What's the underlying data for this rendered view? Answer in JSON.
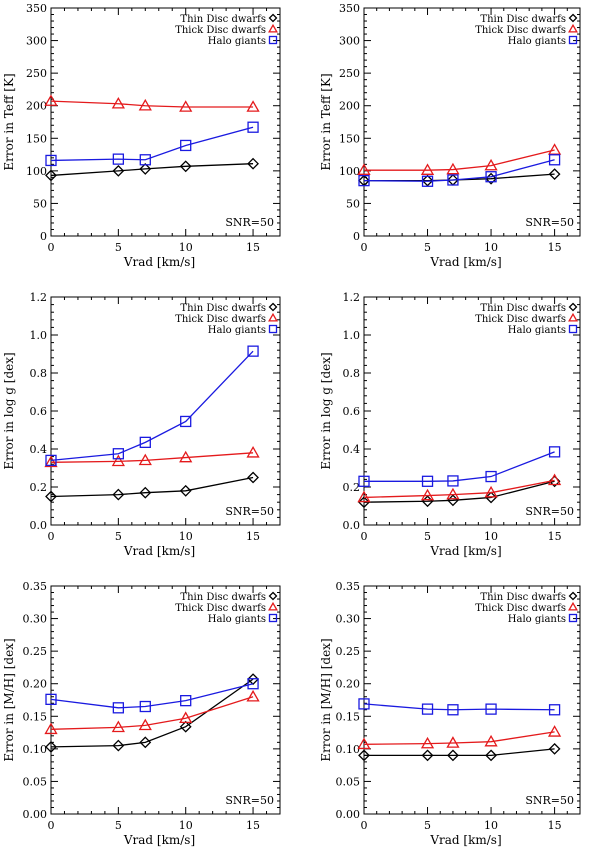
{
  "legend": {
    "thin_label": "Thin Disc dwarfs",
    "thick_label": "Thick Disc dwarfs",
    "halo_label": "Halo giants"
  },
  "colors": {
    "thin": "#000000",
    "thick": "#e41a1c",
    "halo": "#1a1ae0"
  },
  "chart_data": [
    {
      "type": "line",
      "title": "",
      "xlabel": "Vrad [km/s]",
      "ylabel": "Error in Teff [K]",
      "xlim": [
        0,
        17
      ],
      "ylim": [
        0,
        350
      ],
      "xticks": [
        0,
        5,
        10,
        15
      ],
      "yticks": [
        0,
        50,
        100,
        150,
        200,
        250,
        300,
        350
      ],
      "tick_decimals": 0,
      "annotation": "SNR=50",
      "x": [
        0,
        5,
        7,
        10,
        15
      ],
      "series": [
        {
          "name": "Thin Disc dwarfs",
          "key": "thin",
          "marker": "diamond",
          "values": [
            93,
            100,
            103,
            107,
            111
          ]
        },
        {
          "name": "Thick Disc dwarfs",
          "key": "thick",
          "marker": "triangle",
          "values": [
            207,
            203,
            200,
            198,
            198
          ]
        },
        {
          "name": "Halo giants",
          "key": "halo",
          "marker": "square",
          "values": [
            116,
            118,
            117,
            139,
            167
          ]
        }
      ]
    },
    {
      "type": "line",
      "title": "",
      "xlabel": "Vrad [km/s]",
      "ylabel": "Error in Teff [K]",
      "xlim": [
        0,
        17
      ],
      "ylim": [
        0,
        350
      ],
      "xticks": [
        0,
        5,
        10,
        15
      ],
      "yticks": [
        0,
        50,
        100,
        150,
        200,
        250,
        300,
        350
      ],
      "tick_decimals": 0,
      "annotation": "SNR=50",
      "x": [
        0,
        5,
        7,
        10,
        15
      ],
      "series": [
        {
          "name": "Thin Disc dwarfs",
          "key": "thin",
          "marker": "diamond",
          "values": [
            85,
            85,
            86,
            88,
            95
          ]
        },
        {
          "name": "Thick Disc dwarfs",
          "key": "thick",
          "marker": "triangle",
          "values": [
            101,
            101,
            102,
            108,
            132
          ]
        },
        {
          "name": "Halo giants",
          "key": "halo",
          "marker": "square",
          "values": [
            85,
            84,
            86,
            91,
            117
          ]
        }
      ]
    },
    {
      "type": "line",
      "title": "",
      "xlabel": "Vrad [km/s]",
      "ylabel": "Error in log g [dex]",
      "xlim": [
        0,
        17
      ],
      "ylim": [
        0,
        1.2
      ],
      "xticks": [
        0,
        5,
        10,
        15
      ],
      "yticks": [
        0.0,
        0.2,
        0.4,
        0.6,
        0.8,
        1.0,
        1.2
      ],
      "tick_decimals": 1,
      "annotation": "SNR=50",
      "x": [
        0,
        5,
        7,
        10,
        15
      ],
      "series": [
        {
          "name": "Thin Disc dwarfs",
          "key": "thin",
          "marker": "diamond",
          "values": [
            0.15,
            0.16,
            0.17,
            0.18,
            0.25
          ]
        },
        {
          "name": "Thick Disc dwarfs",
          "key": "thick",
          "marker": "triangle",
          "values": [
            0.33,
            0.335,
            0.34,
            0.355,
            0.38
          ]
        },
        {
          "name": "Halo giants",
          "key": "halo",
          "marker": "square",
          "values": [
            0.34,
            0.375,
            0.435,
            0.545,
            0.915
          ]
        }
      ]
    },
    {
      "type": "line",
      "title": "",
      "xlabel": "Vrad [km/s]",
      "ylabel": "Error in log g [dex]",
      "xlim": [
        0,
        17
      ],
      "ylim": [
        0,
        1.2
      ],
      "xticks": [
        0,
        5,
        10,
        15
      ],
      "yticks": [
        0.0,
        0.2,
        0.4,
        0.6,
        0.8,
        1.0,
        1.2
      ],
      "tick_decimals": 1,
      "annotation": "SNR=50",
      "x": [
        0,
        5,
        7,
        10,
        15
      ],
      "series": [
        {
          "name": "Thin Disc dwarfs",
          "key": "thin",
          "marker": "diamond",
          "values": [
            0.12,
            0.125,
            0.13,
            0.145,
            0.23
          ]
        },
        {
          "name": "Thick Disc dwarfs",
          "key": "thick",
          "marker": "triangle",
          "values": [
            0.145,
            0.155,
            0.16,
            0.17,
            0.235
          ]
        },
        {
          "name": "Halo giants",
          "key": "halo",
          "marker": "square",
          "values": [
            0.23,
            0.23,
            0.232,
            0.255,
            0.385
          ]
        }
      ]
    },
    {
      "type": "line",
      "title": "",
      "xlabel": "Vrad [km/s]",
      "ylabel": "Error in [M/H] [dex]",
      "xlim": [
        0,
        17
      ],
      "ylim": [
        0,
        0.35
      ],
      "xticks": [
        0,
        5,
        10,
        15
      ],
      "yticks": [
        0.0,
        0.05,
        0.1,
        0.15,
        0.2,
        0.25,
        0.3,
        0.35
      ],
      "tick_decimals": 2,
      "annotation": "SNR=50",
      "x": [
        0,
        5,
        7,
        10,
        15
      ],
      "series": [
        {
          "name": "Thin Disc dwarfs",
          "key": "thin",
          "marker": "diamond",
          "values": [
            0.103,
            0.105,
            0.11,
            0.134,
            0.207
          ]
        },
        {
          "name": "Thick Disc dwarfs",
          "key": "thick",
          "marker": "triangle",
          "values": [
            0.13,
            0.133,
            0.136,
            0.147,
            0.18
          ]
        },
        {
          "name": "Halo giants",
          "key": "halo",
          "marker": "square",
          "values": [
            0.176,
            0.163,
            0.165,
            0.174,
            0.2
          ]
        }
      ]
    },
    {
      "type": "line",
      "title": "",
      "xlabel": "Vrad [km/s]",
      "ylabel": "Error in [M/H] [dex]",
      "xlim": [
        0,
        17
      ],
      "ylim": [
        0,
        0.35
      ],
      "xticks": [
        0,
        5,
        10,
        15
      ],
      "yticks": [
        0.0,
        0.05,
        0.1,
        0.15,
        0.2,
        0.25,
        0.3,
        0.35
      ],
      "tick_decimals": 2,
      "annotation": "SNR=50",
      "x": [
        0,
        5,
        7,
        10,
        15
      ],
      "series": [
        {
          "name": "Thin Disc dwarfs",
          "key": "thin",
          "marker": "diamond",
          "values": [
            0.09,
            0.09,
            0.09,
            0.09,
            0.1
          ]
        },
        {
          "name": "Thick Disc dwarfs",
          "key": "thick",
          "marker": "triangle",
          "values": [
            0.107,
            0.108,
            0.109,
            0.111,
            0.126
          ]
        },
        {
          "name": "Halo giants",
          "key": "halo",
          "marker": "square",
          "values": [
            0.169,
            0.161,
            0.16,
            0.161,
            0.16
          ]
        }
      ]
    }
  ]
}
